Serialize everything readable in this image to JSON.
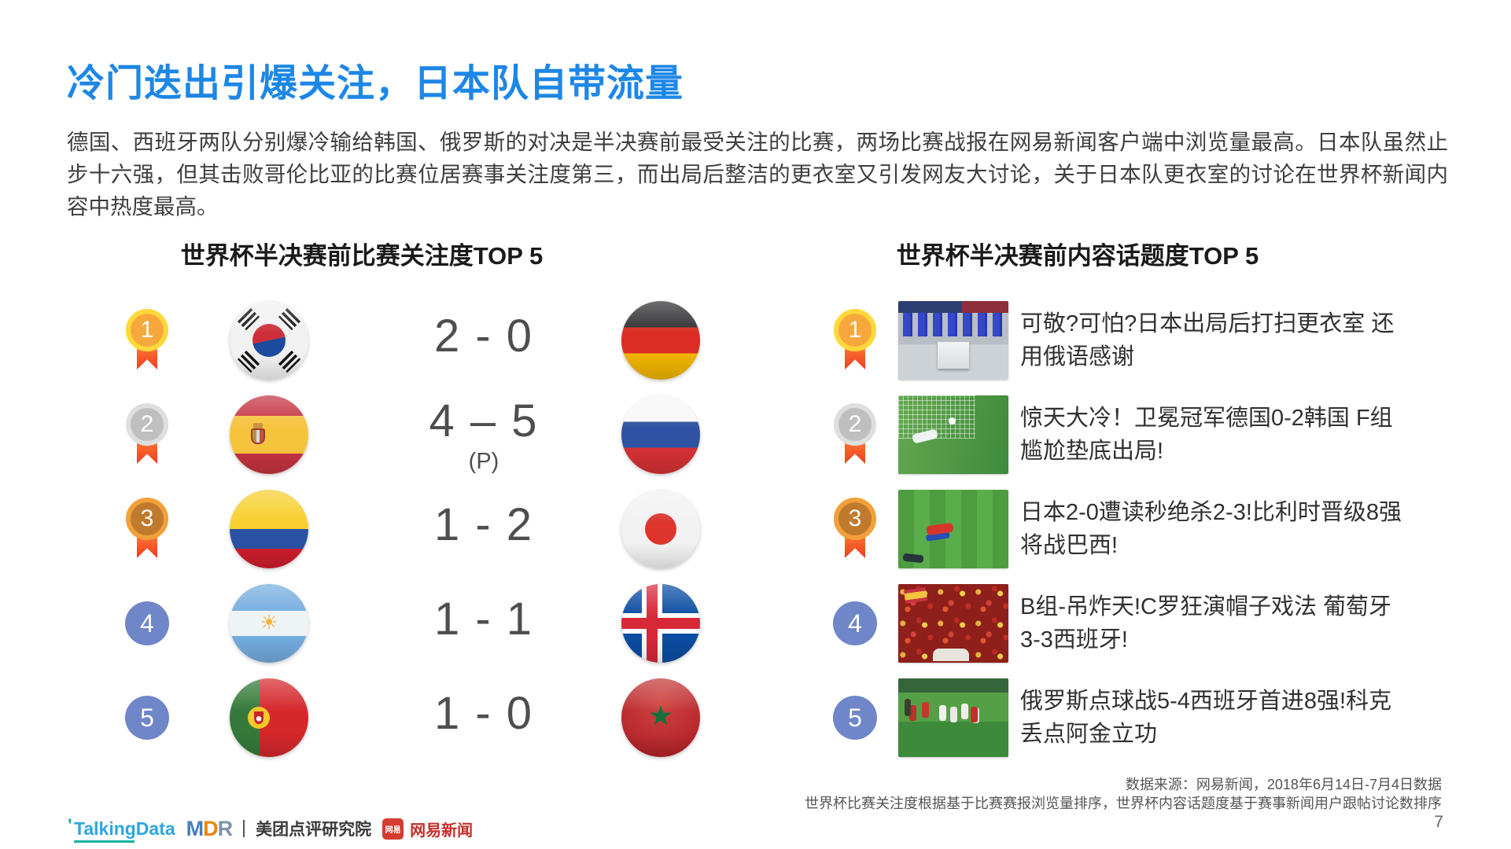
{
  "slide": {
    "title": "冷门迭出引爆关注，日本队自带流量",
    "paragraph": "德国、西班牙两队分别爆冷输给韩国、俄罗斯的对决是半决赛前最受关注的比赛，两场比赛战报在网易新闻客户端中浏览量最高。日本队虽然止步十六强，但其击败哥伦比亚的比赛位居赛事关注度第三，而出局后整洁的更衣室又引发网友大讨论，关于日本队更衣室的讨论在世界杯新闻内容中热度最高。",
    "page_number": "7"
  },
  "match_ranking": {
    "title": "世界杯半决赛前比赛关注度TOP 5",
    "rows": [
      {
        "rank": "1",
        "medal": "gold",
        "home_team": "South Korea",
        "away_team": "Germany",
        "score": "2 - 0",
        "note": ""
      },
      {
        "rank": "2",
        "medal": "silver",
        "home_team": "Spain",
        "away_team": "Russia",
        "score": "4 – 5",
        "note": "(P)"
      },
      {
        "rank": "3",
        "medal": "bronze",
        "home_team": "Colombia",
        "away_team": "Japan",
        "score": "1 - 2",
        "note": ""
      },
      {
        "rank": "4",
        "medal": "none",
        "home_team": "Argentina",
        "away_team": "Iceland",
        "score": "1 - 1",
        "note": ""
      },
      {
        "rank": "5",
        "medal": "none",
        "home_team": "Portugal",
        "away_team": "Morocco",
        "score": "1 - 0",
        "note": ""
      }
    ]
  },
  "topic_ranking": {
    "title": "世界杯半决赛前内容话题度TOP 5",
    "rows": [
      {
        "rank": "1",
        "medal": "gold",
        "thumbnail": "japan-locker-room-photo",
        "headline": "可敬?可怕?日本出局后打扫更衣室 还用俄语感谢"
      },
      {
        "rank": "2",
        "medal": "silver",
        "thumbnail": "germany-vs-korea-match-photo",
        "headline": "惊天大冷！卫冕冠军德国0-2韩国 F组尴尬垫底出局!"
      },
      {
        "rank": "3",
        "medal": "bronze",
        "thumbnail": "japan-vs-belgium-match-photo",
        "headline": "日本2-0遭读秒绝杀2-3!比利时晋级8强将战巴西!"
      },
      {
        "rank": "4",
        "medal": "none",
        "thumbnail": "portugal-spain-fans-photo",
        "headline": "B组-吊炸天!C罗狂演帽子戏法 葡萄牙3-3西班牙!"
      },
      {
        "rank": "5",
        "medal": "none",
        "thumbnail": "russia-spain-penalty-photo",
        "headline": "俄罗斯点球战5-4西班牙首进8强!科克丢点阿金立功"
      }
    ]
  },
  "footer": {
    "source_line1": "数据来源：网易新闻，2018年6月14日-7月4日数据",
    "source_line2": "世界杯比赛关注度根据基于比赛赛报浏览量排序，世界杯内容话题度基于赛事新闻用户跟帖讨论数排序",
    "logos": {
      "talkingdata": "TalkingData",
      "mdr_m": "M",
      "mdr_d": "D",
      "mdr_r": "R",
      "meituan": "美团点评研究院",
      "netease_badge": "网易",
      "netease": "网易新闻"
    }
  },
  "colors": {
    "title_blue": "#1d87e6",
    "medal_gold_ring": "#ffd83a",
    "medal_gold_core": "#f7a83c",
    "medal_silver_ring": "#dedede",
    "medal_silver_core": "#bfbfbf",
    "medal_bronze_ring": "#f2a03a",
    "medal_bronze_core": "#bf7a2e",
    "ribbon_red": "#ee3d22",
    "rank_circle_blue": "#6f86c8"
  }
}
